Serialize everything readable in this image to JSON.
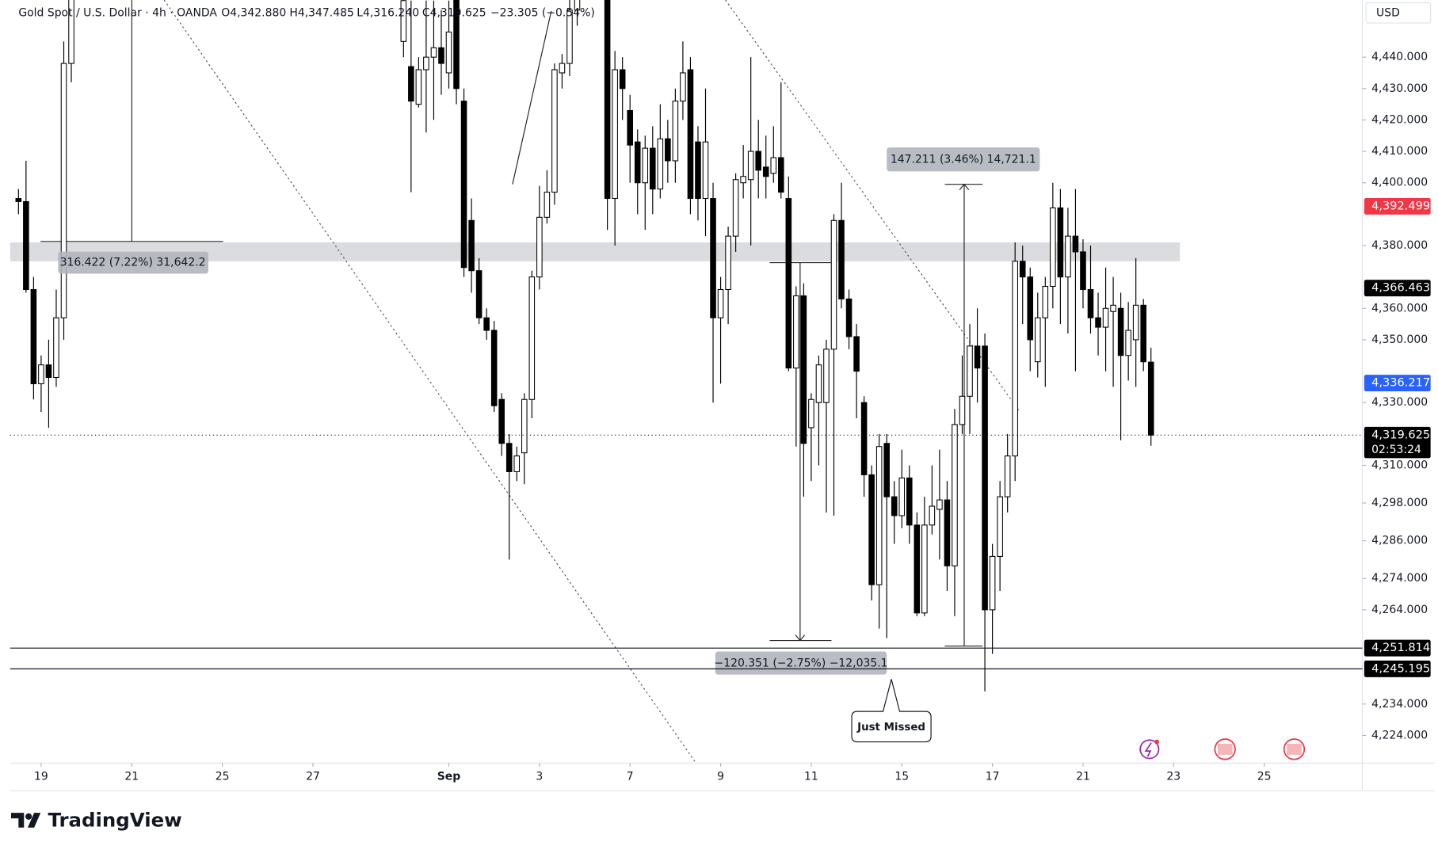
{
  "header": {
    "symbol": "Gold Spot / U.S. Dollar · 4h · OANDA",
    "open": "O4,342.880",
    "high": "H4,347.485",
    "low": "L4,316.240",
    "close": "C4,319.625",
    "change": "−23.305 (−0.54%)"
  },
  "chart_data": {
    "type": "candlestick",
    "currency": "USD",
    "x": [
      0,
      1,
      2,
      3,
      4,
      5,
      6,
      7,
      51,
      52,
      53,
      54,
      55,
      56,
      57,
      58,
      59,
      60,
      61,
      62,
      63,
      64,
      65,
      66,
      67,
      68,
      69,
      70,
      71,
      72,
      73,
      74,
      78,
      79,
      80,
      81,
      82,
      83,
      84,
      85,
      86,
      87,
      88,
      89,
      90,
      91,
      92,
      93,
      94,
      95,
      96,
      97,
      98,
      99,
      100,
      101,
      102,
      103,
      104,
      105,
      106,
      107,
      108,
      109,
      110,
      111,
      112,
      113,
      114,
      115,
      116,
      117,
      118,
      119,
      120,
      121,
      122,
      123,
      124,
      125,
      126,
      127,
      128,
      129,
      130,
      131,
      132,
      133,
      134,
      135,
      136,
      137,
      138,
      139,
      140,
      141,
      142,
      143,
      144,
      145,
      146,
      147,
      148,
      149,
      150
    ],
    "open": [
      4395,
      4394,
      4366,
      4336,
      4342,
      4338,
      4357,
      4438,
      4445,
      4437,
      4425,
      4436,
      4440,
      4443,
      4435,
      4460,
      4426,
      4388,
      4372,
      4357,
      4353,
      4331,
      4317,
      4308,
      4314,
      4331,
      4370,
      4389,
      4397,
      4435,
      4438,
      4455,
      4462,
      4395,
      4436,
      4423,
      4413,
      4400,
      4411,
      4398,
      4414,
      4407,
      4426,
      4436,
      4413,
      4395,
      4395,
      4357,
      4366,
      4383,
      4400,
      4401,
      4410,
      4405,
      4403,
      4408,
      4395,
      4341,
      4364,
      4322,
      4330,
      4330,
      4347,
      4388,
      4363,
      4351,
      4330,
      4307,
      4272,
      4317,
      4300,
      4294,
      4306,
      4291,
      4263,
      4291,
      4296,
      4299,
      4278,
      4323,
      4332,
      4348,
      4348,
      4264,
      4281,
      4300,
      4313,
      4375,
      4370,
      4343,
      4357,
      4367,
      4392,
      4370,
      4383,
      4378,
      4366,
      4357,
      4354,
      4359,
      4360,
      4345,
      4350,
      4361,
      4342.88
    ],
    "high": [
      4398,
      4407,
      4370,
      4345,
      4350,
      4366,
      4445,
      4475,
      4465,
      4458,
      4440,
      4458,
      4458,
      4455,
      4458,
      4465,
      4430,
      4395,
      4376,
      4360,
      4356,
      4333,
      4320,
      4316,
      4333,
      4372,
      4399,
      4404,
      4438,
      4441,
      4462,
      4470,
      4470,
      4442,
      4440,
      4428,
      4417,
      4415,
      4418,
      4425,
      4420,
      4430,
      4445,
      4440,
      4418,
      4430,
      4400,
      4370,
      4386,
      4403,
      4412,
      4440,
      4420,
      4415,
      4418,
      4432,
      4402,
      4367,
      4368,
      4333,
      4345,
      4350,
      4390,
      4400,
      4366,
      4355,
      4332,
      4310,
      4320,
      4320,
      4305,
      4315,
      4310,
      4295,
      4300,
      4310,
      4315,
      4305,
      4328,
      4345,
      4355,
      4360,
      4352,
      4285,
      4305,
      4320,
      4381,
      4380,
      4373,
      4365,
      4370,
      4400,
      4398,
      4392,
      4398,
      4382,
      4380,
      4365,
      4373,
      4370,
      4365,
      4362,
      4376,
      4363,
      4347.485
    ],
    "low": [
      4390,
      4365,
      4331,
      4327,
      4322,
      4335,
      4350,
      4432,
      4440,
      4397,
      4424,
      4416,
      4420,
      4428,
      4430,
      4425,
      4370,
      4365,
      4355,
      4350,
      4327,
      4313,
      4280,
      4305,
      4304,
      4325,
      4366,
      4387,
      4393,
      4430,
      4434,
      4450,
      4385,
      4380,
      4420,
      4400,
      4390,
      4385,
      4390,
      4395,
      4400,
      4400,
      4420,
      4390,
      4388,
      4383,
      4330,
      4336,
      4355,
      4378,
      4395,
      4380,
      4395,
      4395,
      4400,
      4395,
      4340,
      4316,
      4300,
      4305,
      4310,
      4295,
      4294,
      4360,
      4347,
      4325,
      4300,
      4267,
      4258,
      4255,
      4285,
      4290,
      4285,
      4262,
      4262,
      4288,
      4280,
      4270,
      4262,
      4320,
      4320,
      4330,
      4238,
      4250,
      4270,
      4295,
      4305,
      4355,
      4340,
      4338,
      4335,
      4360,
      4355,
      4352,
      4340,
      4360,
      4352,
      4345,
      4340,
      4335,
      4318,
      4337,
      4335,
      4340,
      4316.24
    ],
    "close": [
      4394,
      4366,
      4336,
      4342,
      4338,
      4357,
      4438,
      4465,
      4458,
      4426,
      4436,
      4440,
      4443,
      4438,
      4448,
      4430,
      4373,
      4372,
      4357,
      4353,
      4329,
      4317,
      4308,
      4313,
      4331,
      4370,
      4389,
      4397,
      4436,
      4438,
      4455,
      4465,
      4395,
      4436,
      4430,
      4412,
      4400,
      4411,
      4398,
      4414,
      4407,
      4426,
      4435,
      4395,
      4395,
      4413,
      4357,
      4366,
      4383,
      4401,
      4402,
      4410,
      4404,
      4402,
      4408,
      4397,
      4341,
      4364,
      4317,
      4331,
      4342,
      4347,
      4388,
      4363,
      4351,
      4340,
      4307,
      4272,
      4316,
      4300,
      4294,
      4306,
      4291,
      4263,
      4291,
      4297,
      4299,
      4278,
      4323,
      4332,
      4348,
      4341,
      4264,
      4281,
      4300,
      4313,
      4375,
      4370,
      4350,
      4357,
      4367,
      4392,
      4370,
      4383,
      4378,
      4366,
      4357,
      4354,
      4360,
      4361,
      4345,
      4353,
      4361,
      4343,
      4319.625
    ],
    "up_color": "#ffffff",
    "down_color": "#000000",
    "xlim": [
      -1.1,
      178
    ],
    "xticks": [
      {
        "value": 3,
        "label": "19"
      },
      {
        "value": 15,
        "label": "21"
      },
      {
        "value": 27,
        "label": "25"
      },
      {
        "value": 39,
        "label": "27"
      },
      {
        "value": 57,
        "label": "Sep"
      },
      {
        "value": 69,
        "label": "3"
      },
      {
        "value": 81,
        "label": "7"
      },
      {
        "value": 93,
        "label": "9"
      },
      {
        "value": 105,
        "label": "11"
      },
      {
        "value": 117,
        "label": "15"
      },
      {
        "value": 129,
        "label": "17"
      },
      {
        "value": 141,
        "label": "21"
      },
      {
        "value": 153,
        "label": "23"
      },
      {
        "value": 165,
        "label": "25"
      }
    ],
    "ylim": [
      4215.2,
      4458.2
    ],
    "yticks": [
      {
        "value": 4440,
        "label": "4,440.000"
      },
      {
        "value": 4430,
        "label": "4,430.000"
      },
      {
        "value": 4420,
        "label": "4,420.000"
      },
      {
        "value": 4410,
        "label": "4,410.000"
      },
      {
        "value": 4400,
        "label": "4,400.000"
      },
      {
        "value": 4380,
        "label": "4,380.000"
      },
      {
        "value": 4360,
        "label": "4,360.000"
      },
      {
        "value": 4350,
        "label": "4,350.000"
      },
      {
        "value": 4330,
        "label": "4,330.000"
      },
      {
        "value": 4310,
        "label": "4,310.000"
      },
      {
        "value": 4298,
        "label": "4,298.000"
      },
      {
        "value": 4286,
        "label": "4,286.000"
      },
      {
        "value": 4274,
        "label": "4,274.000"
      },
      {
        "value": 4264,
        "label": "4,264.000"
      },
      {
        "value": 4234,
        "label": "4,234.000"
      },
      {
        "value": 4224,
        "label": "4,224.000"
      }
    ],
    "zone": [
      4375,
      4381
    ],
    "price_labels": [
      {
        "value": 4392.499,
        "label": "4,392.499",
        "color": "#f23645"
      },
      {
        "value": 4366.463,
        "label": "4,366.463",
        "color": "#000000"
      },
      {
        "value": 4336.217,
        "label": "4,336.217",
        "color": "#2962ff"
      },
      {
        "value": 4319.625,
        "label": "4,319.625",
        "color": "#000000",
        "line": "dotted"
      },
      {
        "value": 4251.814,
        "label": "4,251.814",
        "color": "#000000",
        "line": "solid"
      },
      {
        "value": 4245.195,
        "label": "4,245.195",
        "color": "#000000",
        "line": "solid"
      }
    ],
    "countdown": "02:53:24",
    "annotations": [
      "316.422 (7.22%) 31,642.2",
      "147.211 (3.46%) 14,721.1",
      "−120.351 (−2.75%) −12,035.1",
      "Just Missed"
    ]
  },
  "branding": "TradingView"
}
